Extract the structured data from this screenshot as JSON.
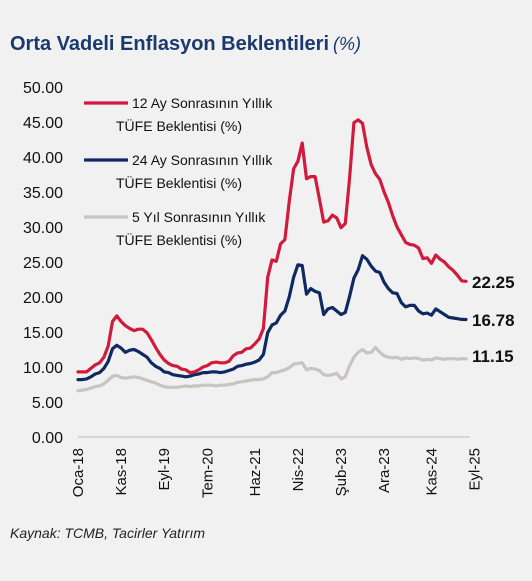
{
  "title": "Orta Vadeli Enflasyon Beklentileri",
  "title_unit": "(%)",
  "source": "Kaynak: TCMB, Tacirler Yatırım",
  "chart_data": {
    "type": "line",
    "ylim": [
      0,
      50
    ],
    "yticks": [
      "0.00",
      "5.00",
      "10.00",
      "15.00",
      "20.00",
      "25.00",
      "30.00",
      "35.00",
      "40.00",
      "45.00",
      "50.00"
    ],
    "x_start": "2018-01",
    "xtick_labels": [
      {
        "label": "Oca-18",
        "index": 0
      },
      {
        "label": "Kas-18",
        "index": 10
      },
      {
        "label": "Eyl-19",
        "index": 20
      },
      {
        "label": "Tem-20",
        "index": 30
      },
      {
        "label": "Haz-21",
        "index": 41
      },
      {
        "label": "Nis-22",
        "index": 51
      },
      {
        "label": "Şub-23",
        "index": 61
      },
      {
        "label": "Ara-23",
        "index": 71
      },
      {
        "label": "Kas-24",
        "index": 82
      },
      {
        "label": "Eyl-25",
        "index": 92
      }
    ],
    "legend_position": "top-left",
    "grid": false,
    "series": [
      {
        "name": "12 Ay Sonrasının Yıllık TÜFE Beklentisi (%)",
        "legend_lines": [
          "12 Ay Sonrasının Yıllık",
          "TÜFE Beklentisi (%)"
        ],
        "color": "#d11a3c",
        "end_label": "22.25",
        "values": [
          9.3,
          9.3,
          9.3,
          9.8,
          10.3,
          10.6,
          11.4,
          13.0,
          16.5,
          17.3,
          16.5,
          15.9,
          15.5,
          15.2,
          15.4,
          15.4,
          14.9,
          13.9,
          12.8,
          11.8,
          11.0,
          10.5,
          10.2,
          10.1,
          9.7,
          9.6,
          9.2,
          9.3,
          9.6,
          10.0,
          10.2,
          10.6,
          10.7,
          10.6,
          10.6,
          10.8,
          11.6,
          12.0,
          12.1,
          12.6,
          12.7,
          13.3,
          14.0,
          15.5,
          22.8,
          25.3,
          25.1,
          27.6,
          28.2,
          33.6,
          38.3,
          39.4,
          42.0,
          36.9,
          37.2,
          37.2,
          34.0,
          30.7,
          30.9,
          31.7,
          31.3,
          29.9,
          30.5,
          37.0,
          44.9,
          45.3,
          44.8,
          41.4,
          38.9,
          37.6,
          36.8,
          35.0,
          33.5,
          31.6,
          30.0,
          28.9,
          27.8,
          27.5,
          27.4,
          27.0,
          25.5,
          25.6,
          24.8,
          26.0,
          25.4,
          25.0,
          24.3,
          23.8,
          23.1,
          22.3,
          22.25
        ]
      },
      {
        "name": "24 Ay Sonrasının Yıllık TÜFE Beklentisi (%)",
        "legend_lines": [
          "24 Ay Sonrasının Yıllık",
          "TÜFE Beklentisi (%)"
        ],
        "color": "#0f2a60",
        "end_label": "16.78",
        "values": [
          8.2,
          8.2,
          8.3,
          8.6,
          9.0,
          9.2,
          9.8,
          10.8,
          12.6,
          13.1,
          12.7,
          12.1,
          12.4,
          12.5,
          12.2,
          11.8,
          11.4,
          10.6,
          10.1,
          9.8,
          9.3,
          9.2,
          8.9,
          8.8,
          8.7,
          8.6,
          8.7,
          8.9,
          9.0,
          9.2,
          9.2,
          9.3,
          9.3,
          9.2,
          9.3,
          9.5,
          9.7,
          10.1,
          10.2,
          10.4,
          10.5,
          10.7,
          11.0,
          11.8,
          14.9,
          16.0,
          16.3,
          17.4,
          18.0,
          20.0,
          22.8,
          24.6,
          24.5,
          20.4,
          21.2,
          20.8,
          20.6,
          17.5,
          18.3,
          18.5,
          18.0,
          17.5,
          17.8,
          20.1,
          22.7,
          23.9,
          25.9,
          25.4,
          24.4,
          23.7,
          23.5,
          22.1,
          21.2,
          20.6,
          20.5,
          19.2,
          18.6,
          18.8,
          18.8,
          18.0,
          17.6,
          17.7,
          17.4,
          18.3,
          17.9,
          17.5,
          17.1,
          17.0,
          16.9,
          16.8,
          16.78
        ]
      },
      {
        "name": "5 Yıl Sonrasının Yıllık TÜFE Beklentisi (%)",
        "legend_lines": [
          "5 Yıl Sonrasının Yıllık",
          "TÜFE Beklentisi (%)"
        ],
        "color": "#c8c4bf",
        "end_label": "11.15",
        "values": [
          6.6,
          6.7,
          6.8,
          7.0,
          7.2,
          7.3,
          7.6,
          8.1,
          8.7,
          8.8,
          8.5,
          8.4,
          8.5,
          8.6,
          8.5,
          8.3,
          8.1,
          7.9,
          7.7,
          7.4,
          7.2,
          7.1,
          7.1,
          7.1,
          7.2,
          7.3,
          7.2,
          7.3,
          7.3,
          7.4,
          7.4,
          7.4,
          7.3,
          7.4,
          7.4,
          7.5,
          7.6,
          7.8,
          7.9,
          8.0,
          8.1,
          8.2,
          8.2,
          8.3,
          8.6,
          9.2,
          9.2,
          9.4,
          9.6,
          9.9,
          10.4,
          10.5,
          10.6,
          9.6,
          9.8,
          9.7,
          9.5,
          8.9,
          8.8,
          8.9,
          9.1,
          8.3,
          8.6,
          10.2,
          11.4,
          12.1,
          12.5,
          12.0,
          12.1,
          12.8,
          12.1,
          11.6,
          11.4,
          11.3,
          11.4,
          11.1,
          11.3,
          11.2,
          11.3,
          11.2,
          11.0,
          11.1,
          11.0,
          11.3,
          11.2,
          11.1,
          11.2,
          11.2,
          11.1,
          11.2,
          11.15
        ]
      }
    ]
  }
}
